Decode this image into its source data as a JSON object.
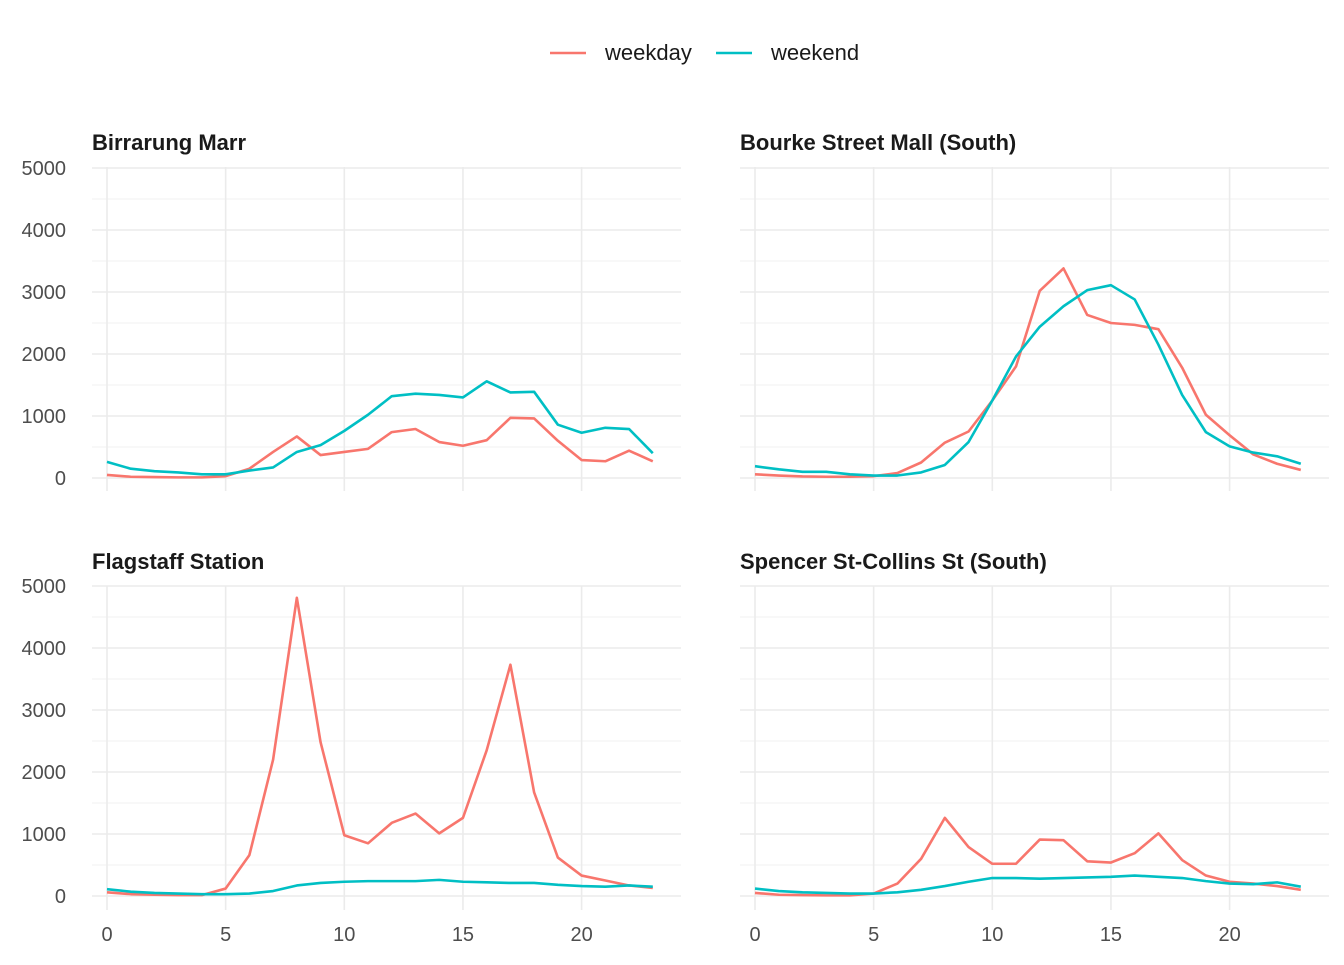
{
  "chart_data": {
    "type": "line",
    "legend": {
      "position": "top",
      "entries": [
        {
          "name": "weekday",
          "color": "#F8766D"
        },
        {
          "name": "weekend",
          "color": "#00BFC4"
        }
      ]
    },
    "x": [
      0,
      1,
      2,
      3,
      4,
      5,
      6,
      7,
      8,
      9,
      10,
      11,
      12,
      13,
      14,
      15,
      16,
      17,
      18,
      19,
      20,
      21,
      22,
      23
    ],
    "xlim": [
      0,
      23
    ],
    "ylim": [
      0,
      5000
    ],
    "x_ticks": [
      0,
      5,
      10,
      15,
      20
    ],
    "y_ticks": [
      0,
      1000,
      2000,
      3000,
      4000,
      5000
    ],
    "grid": true,
    "panels": [
      {
        "title": "Birrarung Marr",
        "series": [
          {
            "name": "weekday",
            "color": "#F8766D",
            "values": [
              50,
              20,
              15,
              10,
              10,
              30,
              150,
              420,
              670,
              370,
              420,
              470,
              740,
              790,
              580,
              520,
              610,
              970,
              960,
              600,
              290,
              270,
              440,
              270
            ]
          },
          {
            "name": "weekend",
            "color": "#00BFC4",
            "values": [
              260,
              150,
              110,
              90,
              60,
              60,
              120,
              170,
              420,
              530,
              760,
              1020,
              1320,
              1360,
              1340,
              1300,
              1560,
              1380,
              1390,
              860,
              730,
              810,
              790,
              400
            ]
          }
        ]
      },
      {
        "title": "Bourke Street Mall (South)",
        "series": [
          {
            "name": "weekday",
            "color": "#F8766D",
            "values": [
              60,
              40,
              25,
              20,
              20,
              30,
              80,
              250,
              570,
              750,
              1250,
              1800,
              3020,
              3380,
              2630,
              2500,
              2470,
              2400,
              1780,
              1020,
              690,
              380,
              230,
              130
            ]
          },
          {
            "name": "weekend",
            "color": "#00BFC4",
            "values": [
              190,
              140,
              100,
              100,
              60,
              40,
              40,
              90,
              210,
              580,
              1250,
              1960,
              2440,
              2770,
              3030,
              3110,
              2880,
              2150,
              1340,
              740,
              510,
              410,
              350,
              230
            ]
          }
        ]
      },
      {
        "title": "Flagstaff Station",
        "series": [
          {
            "name": "weekday",
            "color": "#F8766D",
            "values": [
              60,
              30,
              20,
              15,
              15,
              120,
              660,
              2200,
              4810,
              2480,
              980,
              850,
              1180,
              1330,
              1010,
              1260,
              2350,
              3730,
              1670,
              620,
              330,
              250,
              170,
              130
            ]
          },
          {
            "name": "weekend",
            "color": "#00BFC4",
            "values": [
              110,
              70,
              50,
              40,
              30,
              30,
              40,
              80,
              170,
              210,
              230,
              240,
              240,
              240,
              260,
              230,
              220,
              210,
              210,
              180,
              160,
              150,
              170,
              150
            ]
          }
        ]
      },
      {
        "title": "Spencer St-Collins St (South)",
        "series": [
          {
            "name": "weekday",
            "color": "#F8766D",
            "values": [
              50,
              20,
              15,
              10,
              10,
              40,
              200,
              600,
              1260,
              790,
              520,
              520,
              910,
              900,
              560,
              540,
              690,
              1010,
              580,
              330,
              230,
              200,
              160,
              100
            ]
          },
          {
            "name": "weekend",
            "color": "#00BFC4",
            "values": [
              120,
              80,
              60,
              50,
              40,
              40,
              60,
              100,
              160,
              230,
              290,
              290,
              280,
              290,
              300,
              310,
              330,
              310,
              290,
              240,
              200,
              190,
              220,
              150
            ]
          }
        ]
      }
    ]
  }
}
